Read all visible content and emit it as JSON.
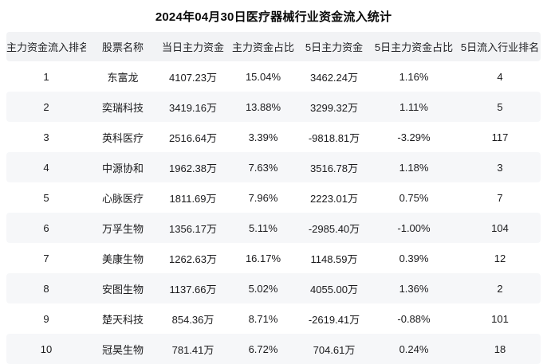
{
  "chart_data": {
    "type": "table",
    "title": "2024年04月30日医疗器械行业资金流入统计",
    "columns": [
      "主力资金流入排名",
      "股票名称",
      "当日主力资金",
      "主力资金占比",
      "5日主力资金",
      "5日主力资金占比",
      "5日流入行业排名"
    ],
    "rows": [
      [
        "1",
        "东富龙",
        "4107.23万",
        "15.04%",
        "3462.24万",
        "1.16%",
        "4"
      ],
      [
        "2",
        "奕瑞科技",
        "3419.16万",
        "13.88%",
        "3299.32万",
        "1.11%",
        "5"
      ],
      [
        "3",
        "英科医疗",
        "2516.64万",
        "3.39%",
        "-9818.81万",
        "-3.29%",
        "117"
      ],
      [
        "4",
        "中源协和",
        "1962.38万",
        "7.63%",
        "3516.78万",
        "1.18%",
        "3"
      ],
      [
        "5",
        "心脉医疗",
        "1811.69万",
        "7.96%",
        "2223.01万",
        "0.75%",
        "7"
      ],
      [
        "6",
        "万孚生物",
        "1356.17万",
        "5.11%",
        "-2985.40万",
        "-1.00%",
        "104"
      ],
      [
        "7",
        "美康生物",
        "1262.63万",
        "16.17%",
        "1148.59万",
        "0.39%",
        "12"
      ],
      [
        "8",
        "安图生物",
        "1137.66万",
        "5.02%",
        "4055.00万",
        "1.36%",
        "2"
      ],
      [
        "9",
        "楚天科技",
        "854.36万",
        "8.71%",
        "-2619.41万",
        "-0.88%",
        "101"
      ],
      [
        "10",
        "冠昊生物",
        "781.41万",
        "6.72%",
        "704.61万",
        "0.24%",
        "18"
      ]
    ],
    "layout": {
      "stripe_rows": "even ranks and header",
      "alignment": "center",
      "grid": "off"
    }
  },
  "colors": {
    "background": "#ffffff",
    "header_bg": "#f2f3f5",
    "stripe_bg": "#f6f7f9",
    "text": "#1b1b1d"
  }
}
